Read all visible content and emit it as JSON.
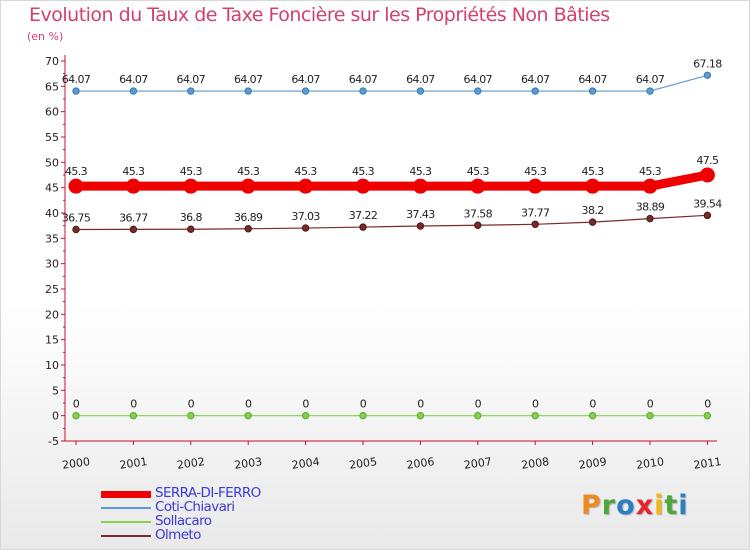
{
  "header": {
    "title": "Evolution du Taux de Taxe Foncière sur les Propriétés Non Bâties",
    "unit": "(en %)"
  },
  "colors": {
    "title": "#d2416a",
    "axis": "#c8102e",
    "serra": "#ee0000",
    "coti": "#5b9bd5",
    "sollacaro": "#82d24a",
    "olmeto": "#7a2a2a",
    "logo_P": "#f08a1e",
    "logo_r": "#4fa63c",
    "logo_o": "#2b7fc3",
    "logo_x": "#e7232e",
    "logo_i": "#f5b50f",
    "logo_t": "#4fa63c",
    "logo_i2": "#2b7fc3"
  },
  "chart_data": {
    "type": "line",
    "title": "Evolution du Taux de Taxe Foncière sur les Propriétés Non Bâties",
    "ylabel": "(en %)",
    "xlabel": "",
    "ylim": [
      -5,
      70
    ],
    "yticks": [
      -5,
      0,
      5,
      10,
      15,
      20,
      25,
      30,
      35,
      40,
      45,
      50,
      55,
      60,
      65,
      70
    ],
    "grid": false,
    "categories": [
      "2000",
      "2001",
      "2002",
      "2003",
      "2004",
      "2005",
      "2006",
      "2007",
      "2008",
      "2009",
      "2010",
      "2011"
    ],
    "series": [
      {
        "name": "SERRA-DI-FERRO",
        "key": "serra",
        "values": [
          45.3,
          45.3,
          45.3,
          45.3,
          45.3,
          45.3,
          45.3,
          45.3,
          45.3,
          45.3,
          45.3,
          47.5
        ],
        "labels": [
          "45.3",
          "45.3",
          "45.3",
          "45.3",
          "45.3",
          "45.3",
          "45.3",
          "45.3",
          "45.3",
          "45.3",
          "45.3",
          "47.5"
        ]
      },
      {
        "name": "Coti-Chiavari",
        "key": "coti",
        "values": [
          64.07,
          64.07,
          64.07,
          64.07,
          64.07,
          64.07,
          64.07,
          64.07,
          64.07,
          64.07,
          64.07,
          67.18
        ],
        "labels": [
          "64.07",
          "64.07",
          "64.07",
          "64.07",
          "64.07",
          "64.07",
          "64.07",
          "64.07",
          "64.07",
          "64.07",
          "64.07",
          "67.18"
        ]
      },
      {
        "name": "Sollacaro",
        "key": "sollacaro",
        "values": [
          0,
          0,
          0,
          0,
          0,
          0,
          0,
          0,
          0,
          0,
          0,
          0
        ],
        "labels": [
          "0",
          "0",
          "0",
          "0",
          "0",
          "0",
          "0",
          "0",
          "0",
          "0",
          "0",
          "0"
        ]
      },
      {
        "name": "Olmeto",
        "key": "olmeto",
        "values": [
          36.75,
          36.77,
          36.8,
          36.89,
          37.03,
          37.22,
          37.43,
          37.58,
          37.77,
          38.2,
          38.89,
          39.54
        ],
        "labels": [
          "36.75",
          "36.77",
          "36.8",
          "36.89",
          "37.03",
          "37.22",
          "37.43",
          "37.58",
          "37.77",
          "38.2",
          "38.89",
          "39.54"
        ]
      }
    ]
  },
  "legend": [
    {
      "label": "SERRA-DI-FERRO",
      "key": "serra"
    },
    {
      "label": "Coti-Chiavari",
      "key": "coti"
    },
    {
      "label": "Sollacaro",
      "key": "sollacaro"
    },
    {
      "label": "Olmeto",
      "key": "olmeto"
    }
  ],
  "logo": {
    "letters": [
      "P",
      "r",
      "o",
      "x",
      "i",
      "t",
      "i"
    ],
    "colors": [
      "logo_P",
      "logo_r",
      "logo_o",
      "logo_x",
      "logo_i",
      "logo_t",
      "logo_i2"
    ]
  }
}
